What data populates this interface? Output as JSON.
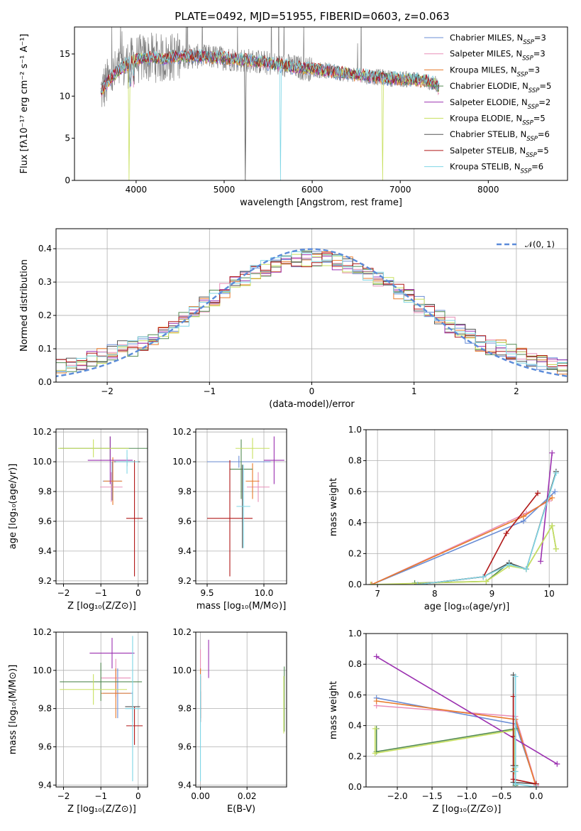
{
  "figure": {
    "title": "PLATE=0492, MJD=51955, FIBERID=0603, z=0.063"
  },
  "chart_data": [
    {
      "id": "spectrum",
      "type": "line",
      "xlabel": "wavelength [Angstrom, rest frame]",
      "ylabel": "Flux [fλ10⁻¹⁷ erg cm⁻² s⁻¹ A⁻¹]",
      "xlim": [
        3300,
        8900
      ],
      "ylim": [
        0,
        18.2
      ],
      "xticks": [
        4000,
        5000,
        6000,
        7000,
        8000
      ],
      "yticks": [
        0,
        5,
        10,
        15
      ],
      "grid": false,
      "legend_position": "upper right",
      "data_color": "#808080",
      "continuum": {
        "x": [
          3600,
          3700,
          3800,
          3900,
          4000,
          4100,
          4200,
          4300,
          4400,
          4500,
          4700,
          4900,
          5100,
          5300,
          5500,
          5700,
          5900,
          6100,
          6300,
          6500,
          6700,
          6900,
          7100,
          7300,
          7400,
          7450
        ],
        "y": [
          10.5,
          12.0,
          13.0,
          13.8,
          14.3,
          14.5,
          14.6,
          14.4,
          14.6,
          14.7,
          14.7,
          14.6,
          14.4,
          14.2,
          13.9,
          13.6,
          13.3,
          13.1,
          12.8,
          12.5,
          12.3,
          12.1,
          12.0,
          11.8,
          11.4,
          10.8
        ]
      },
      "model_labels": [
        "Chabrier MILES, N_SSP=3",
        "Salpeter MILES, N_SSP=3",
        "Kroupa MILES, N_SSP=3",
        "Chabrier ELODIE, N_SSP=5",
        "Salpeter ELODIE, N_SSP=2",
        "Kroupa ELODIE, N_SSP=5",
        "Chabrier STELIB, N_SSP=6",
        "Salpeter STELIB, N_SSP=5",
        "Kroupa STELIB, N_SSP=6"
      ]
    },
    {
      "id": "residuals",
      "type": "histogram",
      "xlabel": "(data-model)/error",
      "ylabel": "Normed distribution",
      "xlim": [
        -2.5,
        2.5
      ],
      "ylim": [
        0,
        0.46
      ],
      "xticks": [
        -2,
        -1,
        0,
        1,
        2
      ],
      "yticks": [
        0.0,
        0.1,
        0.2,
        0.3,
        0.4
      ],
      "grid": true,
      "legend": "𝒩(0, 1)",
      "legend_position": "upper right",
      "bin_width": 0.1,
      "reference_curve": "normal(0,1)"
    },
    {
      "id": "age-vs-Z",
      "type": "errorbar",
      "xlabel": "Z [log₁₀(Z/Z⊙)]",
      "ylabel": "age  [log₁₀(age/yr)]",
      "xlim": [
        -2.2,
        0.25
      ],
      "ylim": [
        9.18,
        10.22
      ],
      "xticks": [
        -2,
        -1,
        0
      ],
      "yticks": [
        9.2,
        9.4,
        9.6,
        9.8,
        10.0,
        10.2
      ],
      "grid": true,
      "points": [
        {
          "model": 0,
          "x": -0.7,
          "xerr": 0.25,
          "y": 9.87,
          "yerr": 0.13
        },
        {
          "model": 1,
          "x": -0.72,
          "xerr": 0.3,
          "y": 9.83,
          "yerr": 0.1
        },
        {
          "model": 2,
          "x": -0.68,
          "xerr": 0.25,
          "y": 9.87,
          "yerr": 0.16
        },
        {
          "model": 3,
          "x": -0.75,
          "xerr": 1.35,
          "y": 10.09,
          "yerr": 0.08
        },
        {
          "model": 4,
          "x": -0.75,
          "xerr": 0.6,
          "y": 10.01,
          "yerr": 0.16
        },
        {
          "model": 5,
          "x": -1.2,
          "xerr": 0.95,
          "y": 10.09,
          "yerr": 0.06
        },
        {
          "model": 6,
          "x": -0.3,
          "xerr": 0.35,
          "y": 10.0,
          "yerr": 0.03
        },
        {
          "model": 7,
          "x": -0.1,
          "xerr": 0.22,
          "y": 9.62,
          "yerr": 0.39
        },
        {
          "model": 8,
          "x": -0.3,
          "xerr": 0.3,
          "y": 10.0,
          "yerr": 0.08
        }
      ]
    },
    {
      "id": "age-vs-mass",
      "type": "errorbar",
      "xlabel": "mass [log₁₀(M/M⊙)]",
      "ylabel": "",
      "xlim": [
        9.4,
        10.2
      ],
      "ylim": [
        9.18,
        10.22
      ],
      "xticks": [
        9.5,
        10.0
      ],
      "yticks": [
        9.2,
        9.4,
        9.6,
        9.8,
        10.0,
        10.2
      ],
      "grid": true,
      "points": [
        {
          "model": 0,
          "x": 9.78,
          "xerr": 0.28,
          "y": 10.0,
          "yerr": 0.04
        },
        {
          "model": 1,
          "x": 9.95,
          "xerr": 0.1,
          "y": 9.83,
          "yerr": 0.1
        },
        {
          "model": 2,
          "x": 9.9,
          "xerr": 0.06,
          "y": 9.87,
          "yerr": 0.12
        },
        {
          "model": 3,
          "x": 9.8,
          "xerr": 0.1,
          "y": 9.95,
          "yerr": 0.2
        },
        {
          "model": 4,
          "x": 10.09,
          "xerr": 0.09,
          "y": 10.01,
          "yerr": 0.16
        },
        {
          "model": 5,
          "x": 9.9,
          "xerr": 0.15,
          "y": 10.09,
          "yerr": 0.07
        },
        {
          "model": 6,
          "x": 9.81,
          "xerr": 0.05,
          "y": 9.7,
          "yerr": 0.28
        },
        {
          "model": 7,
          "x": 9.7,
          "xerr": 0.2,
          "y": 9.62,
          "yerr": 0.39
        },
        {
          "model": 8,
          "x": 9.82,
          "xerr": 0.06,
          "y": 9.7,
          "yerr": 0.28
        }
      ]
    },
    {
      "id": "weight-vs-age",
      "type": "line",
      "xlabel": "age  [log₁₀(age/yr)]",
      "ylabel": "mass weight",
      "xlim": [
        6.8,
        10.32
      ],
      "ylim": [
        0,
        1
      ],
      "xticks": [
        7,
        8,
        9,
        10
      ],
      "yticks": [
        0.0,
        0.2,
        0.4,
        0.6,
        0.8,
        1.0
      ],
      "grid": true,
      "series": [
        {
          "model": 0,
          "x": [
            6.9,
            9.55,
            10.1
          ],
          "y": [
            0.0,
            0.41,
            0.6
          ]
        },
        {
          "model": 1,
          "x": [
            6.9,
            9.6,
            10.0
          ],
          "y": [
            0.0,
            0.46,
            0.54
          ]
        },
        {
          "model": 2,
          "x": [
            6.9,
            9.55,
            10.05
          ],
          "y": [
            0.0,
            0.44,
            0.56
          ]
        },
        {
          "model": 3,
          "x": [
            7.65,
            8.9,
            9.3,
            9.6,
            10.05,
            10.12
          ],
          "y": [
            0.01,
            0.02,
            0.14,
            0.1,
            0.38,
            0.23
          ]
        },
        {
          "model": 4,
          "x": [
            9.85,
            10.05
          ],
          "y": [
            0.15,
            0.85
          ]
        },
        {
          "model": 5,
          "x": [
            6.88,
            8.9,
            9.3,
            9.6,
            10.05,
            10.12
          ],
          "y": [
            0.0,
            0.02,
            0.12,
            0.1,
            0.38,
            0.23
          ]
        },
        {
          "model": 6,
          "x": [
            7.7,
            8.85,
            9.3,
            9.6,
            10.12
          ],
          "y": [
            0.0,
            0.05,
            0.14,
            0.1,
            0.73
          ]
        },
        {
          "model": 7,
          "x": [
            7.7,
            8.85,
            9.25,
            9.8
          ],
          "y": [
            0.0,
            0.05,
            0.33,
            0.59
          ]
        },
        {
          "model": 8,
          "x": [
            7.7,
            8.85,
            9.3,
            9.6,
            10.12
          ],
          "y": [
            0.0,
            0.05,
            0.13,
            0.1,
            0.72
          ]
        }
      ]
    },
    {
      "id": "mass-vs-Z",
      "type": "errorbar",
      "xlabel": "Z [log₁₀(Z/Z⊙)]",
      "ylabel": "mass [log₁₀(M/M⊙)]",
      "xlim": [
        -2.2,
        0.25
      ],
      "ylim": [
        9.39,
        10.2
      ],
      "xticks": [
        -2,
        -1,
        0
      ],
      "yticks": [
        9.4,
        9.6,
        9.8,
        10.0,
        10.2
      ],
      "grid": true,
      "points": [
        {
          "model": 0,
          "x": -0.55,
          "xerr": 0.4,
          "y": 9.88,
          "yerr": 0.13
        },
        {
          "model": 1,
          "x": -0.6,
          "xerr": 0.4,
          "y": 9.96,
          "yerr": 0.1
        },
        {
          "model": 2,
          "x": -0.6,
          "xerr": 0.4,
          "y": 9.88,
          "yerr": 0.13
        },
        {
          "model": 3,
          "x": -1.0,
          "xerr": 1.1,
          "y": 9.94,
          "yerr": 0.1
        },
        {
          "model": 4,
          "x": -0.7,
          "xerr": 0.6,
          "y": 10.09,
          "yerr": 0.08
        },
        {
          "model": 5,
          "x": -1.2,
          "xerr": 0.9,
          "y": 9.9,
          "yerr": 0.08
        },
        {
          "model": 6,
          "x": -0.15,
          "xerr": 0.2,
          "y": 9.81,
          "yerr": 0.08
        },
        {
          "model": 7,
          "x": -0.1,
          "xerr": 0.22,
          "y": 9.71,
          "yerr": 0.1
        },
        {
          "model": 8,
          "x": -0.15,
          "xerr": 0.2,
          "y": 9.8,
          "yerr": 0.38
        }
      ]
    },
    {
      "id": "mass-vs-ebv",
      "type": "errorbar",
      "xlabel": "E(B-V)",
      "ylabel": "",
      "xlim": [
        -0.002,
        0.037
      ],
      "ylim": [
        9.39,
        10.2
      ],
      "xticks": [
        0.0,
        0.02
      ],
      "yticks": [
        9.4,
        9.6,
        9.8,
        10.0,
        10.2
      ],
      "grid": true,
      "points": [
        {
          "model": 0,
          "x": 0.0,
          "xerr": 0,
          "y": 9.88,
          "yerr": 0.13
        },
        {
          "model": 1,
          "x": 0.0,
          "xerr": 0,
          "y": 10.05,
          "yerr": 0.06
        },
        {
          "model": 2,
          "x": 0.0,
          "xerr": 0,
          "y": 9.88,
          "yerr": 0.13
        },
        {
          "model": 3,
          "x": 0.036,
          "xerr": 0,
          "y": 9.85,
          "yerr": 0.17
        },
        {
          "model": 4,
          "x": 0.0035,
          "xerr": 0,
          "y": 10.06,
          "yerr": 0.1
        },
        {
          "model": 5,
          "x": 0.0358,
          "xerr": 0,
          "y": 9.82,
          "yerr": 0.15
        },
        {
          "model": 6,
          "x": 0.0,
          "xerr": 0,
          "y": 9.81,
          "yerr": 0.08
        },
        {
          "model": 7,
          "x": 0.0,
          "xerr": 0,
          "y": 9.85,
          "yerr": 0.12
        },
        {
          "model": 8,
          "x": 0.0,
          "xerr": 0,
          "y": 9.7,
          "yerr": 0.28
        }
      ]
    },
    {
      "id": "weight-vs-Z",
      "type": "line",
      "xlabel": "Z [log₁₀(Z/Z⊙)]",
      "ylabel": "mass weight",
      "xlim": [
        -2.45,
        0.45
      ],
      "ylim": [
        0,
        1
      ],
      "xticks": [
        -2.0,
        -1.5,
        -1.0,
        -0.5,
        0.0
      ],
      "yticks": [
        0.0,
        0.2,
        0.4,
        0.6,
        0.8,
        1.0
      ],
      "grid": true,
      "series": [
        {
          "model": 0,
          "x": [
            -2.3,
            -0.3,
            0.0
          ],
          "y": [
            0.58,
            0.41,
            0.01
          ]
        },
        {
          "model": 1,
          "x": [
            -2.3,
            -0.3,
            0.0
          ],
          "y": [
            0.53,
            0.46,
            0.01
          ]
        },
        {
          "model": 2,
          "x": [
            -2.3,
            -0.3,
            0.0
          ],
          "y": [
            0.56,
            0.44,
            0.0
          ]
        },
        {
          "model": 3,
          "x": [
            -2.3,
            -2.3,
            -0.3,
            -0.3,
            -0.3,
            -0.3
          ],
          "y": [
            0.38,
            0.23,
            0.38,
            0.14,
            0.1,
            0.01
          ]
        },
        {
          "model": 4,
          "x": [
            -2.3,
            0.3
          ],
          "y": [
            0.85,
            0.15
          ]
        },
        {
          "model": 5,
          "x": [
            -2.32,
            -2.32,
            -0.32,
            -0.32,
            -0.32
          ],
          "y": [
            0.38,
            0.22,
            0.37,
            0.12,
            0.1
          ]
        },
        {
          "model": 6,
          "x": [
            -0.33,
            -0.33,
            -0.33,
            -0.33,
            0.0
          ],
          "y": [
            0.73,
            0.14,
            0.1,
            0.03,
            0.02
          ]
        },
        {
          "model": 7,
          "x": [
            -0.33,
            -0.33,
            -0.33,
            0.0
          ],
          "y": [
            0.59,
            0.33,
            0.05,
            0.02
          ]
        },
        {
          "model": 8,
          "x": [
            -0.3,
            -0.3,
            -0.3,
            -0.3,
            0.0
          ],
          "y": [
            0.72,
            0.13,
            0.1,
            0.02,
            0.0
          ]
        }
      ]
    }
  ],
  "colors": [
    "#6a8dd5",
    "#e88fb8",
    "#e87a2a",
    "#548b54",
    "#9b30b0",
    "#c8e060",
    "#555555",
    "#b01818",
    "#7fd6e6"
  ]
}
